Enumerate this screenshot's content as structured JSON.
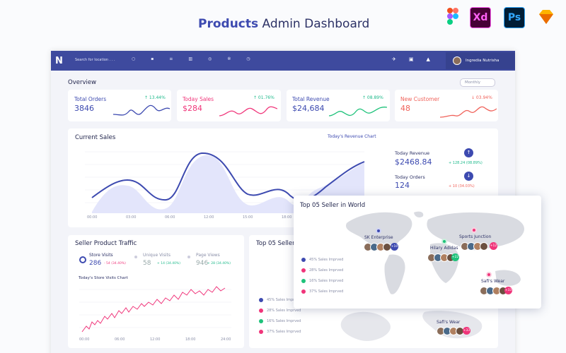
{
  "header": {
    "title_bold": "Products",
    "title_rest": "Admin Dashboard",
    "tools": [
      "Xd",
      "Ps"
    ]
  },
  "navbar": {
    "search": "Search for location . . .",
    "user": "Ingredia Nutrisha"
  },
  "overview": {
    "title": "Overview",
    "filter": "Monthly",
    "cards": [
      {
        "label": "Total Orders",
        "value": "3846",
        "change": "↑ 13.44%"
      },
      {
        "label": "Today Sales",
        "value": "$284",
        "change": "↑ 01.76%"
      },
      {
        "label": "Total Revenue",
        "value": "$24,684",
        "change": "↑ 08.89%"
      },
      {
        "label": "New Customer",
        "value": "48",
        "change": "↓ 03.94%"
      }
    ]
  },
  "current_sales": {
    "title": "Current Sales",
    "link": "Today's Revenue Chart",
    "x_labels": [
      "00:00",
      "03:00",
      "06:00",
      "12:00",
      "15:00",
      "18:00"
    ],
    "stats": [
      {
        "label": "Today Revenue",
        "value": "$2468.84",
        "change": "+ 128.24 (08.89%)"
      },
      {
        "label": "Today Orders",
        "value": "124",
        "change": "+ 10 (34.03%)"
      }
    ]
  },
  "traffic": {
    "title": "Seller Product Traffic",
    "stats": [
      {
        "label": "Store Visits",
        "value": "286",
        "change": "- 54 (34.40%)"
      },
      {
        "label": "Unique Visits",
        "value": "58",
        "change": "+ 14 (34.40%)"
      },
      {
        "label": "Page Views",
        "value": "946",
        "change": "+ 28 (34.40%)"
      }
    ],
    "chart_title": "Today's Store Visits Chart",
    "x_labels": [
      "00:00",
      "06:00",
      "12:00",
      "18:00",
      "24:00"
    ]
  },
  "sellers_card": {
    "title": "Top 05 Seller",
    "legend": [
      "45% Sales Imprved",
      "28% Sales Imprved",
      "16% Sales Imprved",
      "37% Sales Imprved"
    ],
    "pin": {
      "name": "Safi's Wear",
      "badge": "+33"
    }
  },
  "sellers_popup": {
    "title": "Top 05 Seller in World",
    "legend": [
      "45% Sales Imprved",
      "28% Sales Imprved",
      "16% Sales Imprved",
      "37% Sales Imprved"
    ],
    "pins": [
      {
        "name": "SK Enterprise",
        "badge": "+10"
      },
      {
        "name": "Hilary Adidas",
        "badge": "+22"
      },
      {
        "name": "Sports Junction",
        "badge": "+12"
      },
      {
        "name": "Safi's Wear",
        "badge": "+33"
      }
    ]
  }
}
